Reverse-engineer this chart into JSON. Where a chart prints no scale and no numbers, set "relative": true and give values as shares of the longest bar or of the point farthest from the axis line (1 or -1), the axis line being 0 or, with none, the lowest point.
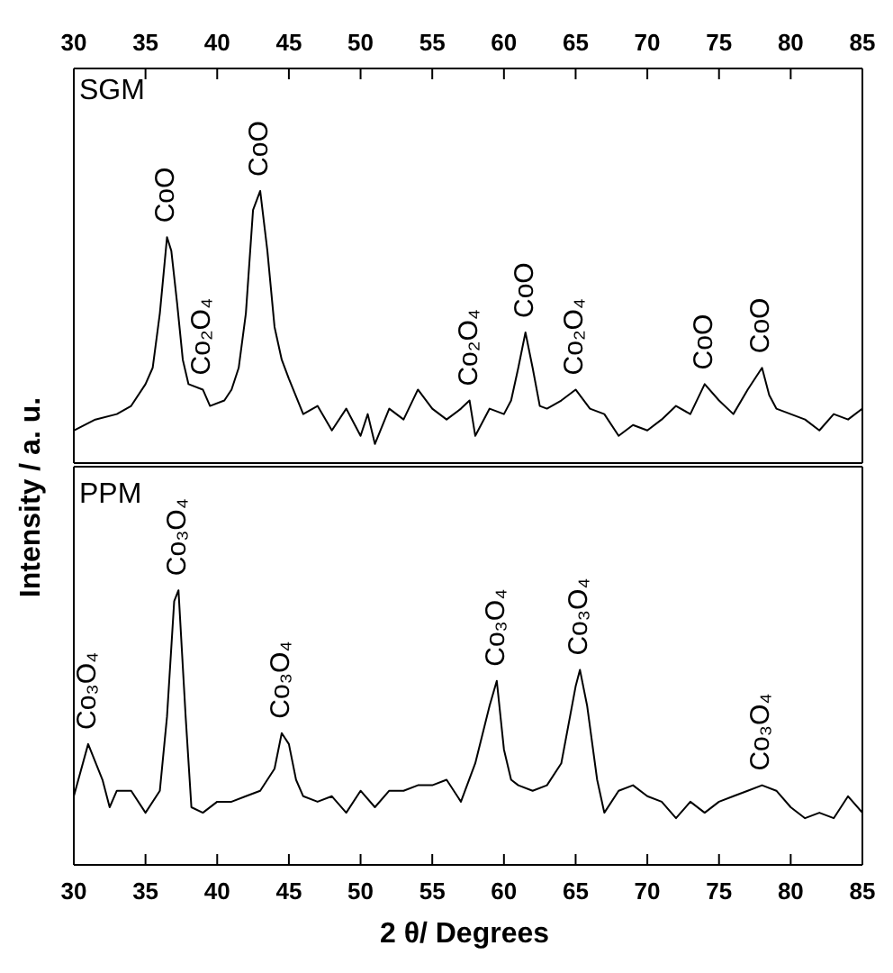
{
  "chart_data": [
    {
      "type": "line",
      "relative": true,
      "ylabel": "Intensity / a. u.",
      "xlim": [
        30,
        85
      ],
      "xticks": [
        30,
        35,
        40,
        45,
        50,
        55,
        60,
        65,
        70,
        75,
        80,
        85
      ],
      "tick_labels": "x",
      "marker": "none",
      "line_style": "solid",
      "series": [
        {
          "name": "SGM",
          "color": "#000000",
          "x": [
            30,
            31.5,
            33,
            34,
            35,
            35.5,
            36,
            36.5,
            36.8,
            37.2,
            37.6,
            38,
            39,
            39.5,
            40.5,
            41,
            41.5,
            42,
            42.5,
            43,
            43.5,
            44,
            44.5,
            45,
            46,
            47,
            48,
            49,
            50,
            50.5,
            51,
            52,
            53,
            54,
            55,
            56,
            57,
            57.6,
            58,
            59,
            60,
            60.5,
            61,
            61.5,
            62,
            62.5,
            63,
            64,
            65,
            66,
            67,
            68,
            69,
            70,
            71,
            72,
            73,
            74,
            75,
            76,
            77,
            78,
            78.5,
            79,
            80,
            81,
            82,
            83,
            84,
            85
          ],
          "values": [
            0.12,
            0.16,
            0.18,
            0.21,
            0.29,
            0.35,
            0.55,
            0.83,
            0.78,
            0.59,
            0.38,
            0.29,
            0.27,
            0.21,
            0.23,
            0.27,
            0.35,
            0.55,
            0.93,
            1,
            0.78,
            0.5,
            0.38,
            0.31,
            0.18,
            0.21,
            0.12,
            0.2,
            0.1,
            0.18,
            0.07,
            0.2,
            0.16,
            0.27,
            0.2,
            0.16,
            0.2,
            0.23,
            0.1,
            0.2,
            0.18,
            0.23,
            0.35,
            0.48,
            0.35,
            0.21,
            0.2,
            0.23,
            0.27,
            0.2,
            0.18,
            0.1,
            0.14,
            0.12,
            0.16,
            0.21,
            0.18,
            0.29,
            0.23,
            0.18,
            0.27,
            0.35,
            0.25,
            0.2,
            0.18,
            0.16,
            0.12,
            0.18,
            0.16,
            0.2
          ]
        }
      ],
      "annotations": [
        {
          "text": "CoO",
          "x": 36.5,
          "y": 0.83
        },
        {
          "text": "Co₂O₄",
          "x": 39,
          "y": 0.27
        },
        {
          "text": "CoO",
          "x": 43,
          "y": 1
        },
        {
          "text": "Co₂O₄",
          "x": 57.6,
          "y": 0.23
        },
        {
          "text": "CoO",
          "x": 61.5,
          "y": 0.48
        },
        {
          "text": "Co₂O₄",
          "x": 65,
          "y": 0.27
        },
        {
          "text": "CoO",
          "x": 74,
          "y": 0.29
        },
        {
          "text": "CoO",
          "x": 78,
          "y": 0.35
        }
      ]
    },
    {
      "type": "line",
      "relative": true,
      "xlabel": "2 θ/ Degrees",
      "xlim": [
        30,
        85
      ],
      "xticks": [
        30,
        35,
        40,
        45,
        50,
        55,
        60,
        65,
        70,
        75,
        80,
        85
      ],
      "tick_labels": "x",
      "marker": "none",
      "line_style": "solid",
      "series": [
        {
          "name": "PPM",
          "color": "#000000",
          "x": [
            30,
            31,
            32,
            32.5,
            33,
            34,
            35,
            36,
            36.5,
            37,
            37.3,
            37.8,
            38.2,
            39,
            40,
            41,
            42,
            43,
            44,
            44.5,
            45,
            45.5,
            46,
            47,
            48,
            49,
            50,
            51,
            52,
            53,
            54,
            55,
            56,
            57,
            58,
            59,
            59.5,
            60,
            60.5,
            61,
            62,
            63,
            64,
            65,
            65.3,
            65.8,
            66.5,
            67,
            68,
            69,
            70,
            71,
            72,
            73,
            74,
            75,
            76,
            77,
            78,
            79,
            80,
            81,
            82,
            83,
            84,
            85
          ],
          "values": [
            0.25,
            0.44,
            0.31,
            0.21,
            0.27,
            0.27,
            0.19,
            0.27,
            0.54,
            0.96,
            1,
            0.54,
            0.21,
            0.19,
            0.23,
            0.23,
            0.25,
            0.27,
            0.35,
            0.48,
            0.44,
            0.31,
            0.25,
            0.23,
            0.25,
            0.19,
            0.27,
            0.21,
            0.27,
            0.27,
            0.29,
            0.29,
            0.31,
            0.23,
            0.37,
            0.58,
            0.67,
            0.42,
            0.31,
            0.29,
            0.27,
            0.29,
            0.37,
            0.65,
            0.71,
            0.58,
            0.31,
            0.19,
            0.27,
            0.29,
            0.25,
            0.23,
            0.17,
            0.23,
            0.19,
            0.23,
            0.25,
            0.27,
            0.29,
            0.27,
            0.21,
            0.17,
            0.19,
            0.17,
            0.25,
            0.19
          ]
        }
      ],
      "annotations": [
        {
          "text": "Co₃O₄",
          "x": 31,
          "y": 0.44
        },
        {
          "text": "Co₃O₄",
          "x": 37.3,
          "y": 1
        },
        {
          "text": "Co₃O₄",
          "x": 44.5,
          "y": 0.48
        },
        {
          "text": "Co₃O₄",
          "x": 59.5,
          "y": 0.67
        },
        {
          "text": "Co₃O₄",
          "x": 65.3,
          "y": 0.71
        },
        {
          "text": "Co₃O₄",
          "x": 78,
          "y": 0.29
        }
      ]
    }
  ]
}
